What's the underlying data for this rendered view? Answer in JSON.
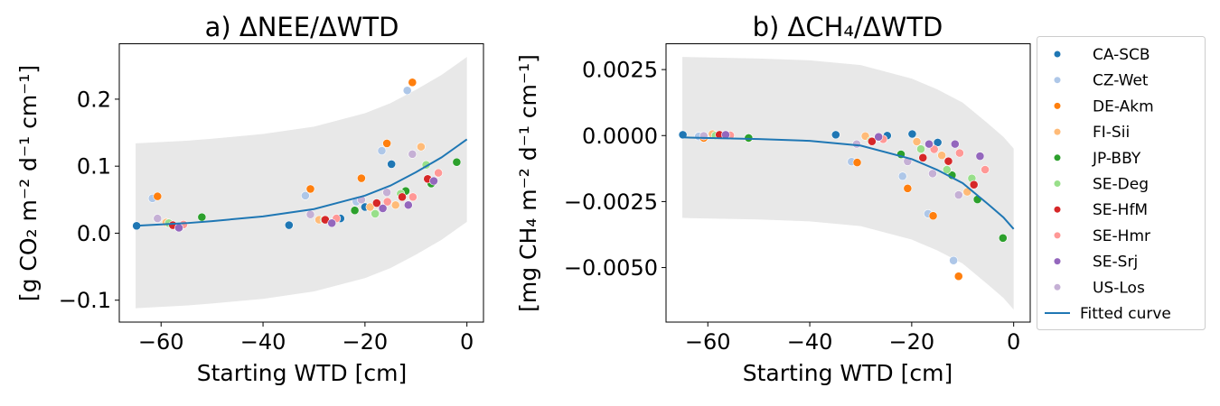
{
  "colors": {
    "CA-SCB": "#1f77b4",
    "CZ-Wet": "#aec7e8",
    "DE-Akm": "#ff7f0e",
    "FI-Sii": "#ffbb78",
    "JP-BBY": "#2ca02c",
    "SE-Deg": "#98df8a",
    "SE-HfM": "#d62728",
    "SE-Hmr": "#ff9896",
    "SE-Srj": "#9467bd",
    "US-Los": "#c5b0d5",
    "curve": "#1f77b4",
    "band": "#e8e8e8"
  },
  "legend": {
    "placement": "outside-right",
    "entries": [
      "CA-SCB",
      "CZ-Wet",
      "DE-Akm",
      "FI-Sii",
      "JP-BBY",
      "SE-Deg",
      "SE-HfM",
      "SE-Hmr",
      "SE-Srj",
      "US-Los",
      "Fitted curve"
    ]
  },
  "chart_data": [
    {
      "type": "scatter",
      "title": "a) ΔNEE/ΔWTD",
      "xlabel": "Starting WTD [cm]",
      "ylabel": "[g CO₂ m⁻² d⁻¹ cm⁻¹]",
      "xlim": [
        -68.2,
        3.25
      ],
      "ylim": [
        -0.1327,
        0.2827
      ],
      "xticks": [
        -60,
        -40,
        -20,
        0
      ],
      "xtick_labels": [
        "−60",
        "−40",
        "−20",
        "0"
      ],
      "yticks": [
        -0.1,
        0.0,
        0.1,
        0.2
      ],
      "ytick_labels": [
        "−0.1",
        "0.0",
        "0.1",
        "0.2"
      ],
      "series": [
        {
          "name": "CA-SCB",
          "x": [
            -64.8,
            -34.9,
            -24.8,
            -20.0,
            -14.8
          ],
          "y": [
            0.011,
            0.012,
            0.022,
            0.039,
            0.103
          ]
        },
        {
          "name": "CZ-Wet",
          "x": [
            -61.7,
            -31.7,
            -21.7,
            -16.7,
            -11.7
          ],
          "y": [
            0.052,
            0.056,
            0.047,
            0.123,
            0.213
          ]
        },
        {
          "name": "DE-Akm",
          "x": [
            -60.7,
            -30.7,
            -20.7,
            -15.7,
            -10.7
          ],
          "y": [
            0.055,
            0.066,
            0.082,
            0.134,
            0.225
          ]
        },
        {
          "name": "FI-Sii",
          "x": [
            -59.0,
            -29.0,
            -19.0,
            -14.0,
            -9.0
          ],
          "y": [
            0.016,
            0.02,
            0.039,
            0.042,
            0.129
          ]
        },
        {
          "name": "JP-BBY",
          "x": [
            -52.0,
            -28.0,
            -22.0,
            -12.0,
            -7.0,
            -2.0
          ],
          "y": [
            0.024,
            0.02,
            0.034,
            0.063,
            0.074,
            0.106
          ]
        },
        {
          "name": "SE-Deg",
          "x": [
            -58.5,
            -28.0,
            -18.0,
            -13.0,
            -8.0
          ],
          "y": [
            0.015,
            0.02,
            0.029,
            0.059,
            0.102
          ]
        },
        {
          "name": "SE-HfM",
          "x": [
            -57.7,
            -27.8,
            -17.7,
            -12.7,
            -7.7
          ],
          "y": [
            0.012,
            0.02,
            0.045,
            0.054,
            0.081
          ]
        },
        {
          "name": "SE-Hmr",
          "x": [
            -55.6,
            -25.6,
            -15.6,
            -10.6,
            -5.6
          ],
          "y": [
            0.013,
            0.022,
            0.047,
            0.054,
            0.09
          ]
        },
        {
          "name": "SE-Srj",
          "x": [
            -56.5,
            -26.5,
            -16.5,
            -11.5,
            -6.5
          ],
          "y": [
            0.008,
            0.015,
            0.037,
            0.042,
            0.078
          ]
        },
        {
          "name": "US-Los",
          "x": [
            -60.7,
            -30.7,
            -20.7,
            -15.7,
            -10.7
          ],
          "y": [
            0.022,
            0.028,
            0.05,
            0.061,
            0.118
          ]
        }
      ],
      "fitted_curve": {
        "x": [
          -65,
          -55,
          -50,
          -40,
          -30,
          -20,
          -15,
          -10,
          -5,
          0
        ],
        "y": [
          0.011,
          0.015,
          0.018,
          0.025,
          0.036,
          0.056,
          0.071,
          0.091,
          0.113,
          0.14
        ]
      },
      "band_halfwidth": 0.123
    },
    {
      "type": "scatter",
      "title": "b) ΔCH₄/ΔWTD",
      "xlabel": "Starting WTD [cm]",
      "ylabel": "[mg CH₄ m⁻² d⁻¹ cm⁻¹]",
      "xlim": [
        -68.2,
        3.25
      ],
      "ylim": [
        -0.007066,
        0.003478
      ],
      "xticks": [
        -60,
        -40,
        -20,
        0
      ],
      "xtick_labels": [
        "−60",
        "−40",
        "−20",
        "0"
      ],
      "yticks": [
        -0.005,
        -0.0025,
        0.0,
        0.0025
      ],
      "ytick_labels": [
        "−0.0050",
        "−0.0025",
        "0.0000",
        "0.0025"
      ],
      "series": [
        {
          "name": "CA-SCB",
          "x": [
            -64.9,
            -34.9,
            -24.8,
            -19.9,
            -14.9
          ],
          "y": [
            3e-05,
            3e-05,
            0.0,
            6e-05,
            -0.00026
          ]
        },
        {
          "name": "CZ-Wet",
          "x": [
            -61.8,
            -31.8,
            -21.8,
            -16.8,
            -11.8
          ],
          "y": [
            -3e-05,
            -0.00099,
            -0.00154,
            -0.00296,
            -0.00473
          ]
        },
        {
          "name": "DE-Akm",
          "x": [
            -60.8,
            -30.7,
            -20.8,
            -15.8,
            -10.8
          ],
          "y": [
            -9e-05,
            -0.00102,
            -0.002,
            -0.00304,
            -0.00533
          ]
        },
        {
          "name": "FI-Sii",
          "x": [
            -59.1,
            -29.1,
            -19.0,
            -14.1,
            -9.1
          ],
          "y": [
            6e-05,
            -2e-05,
            -0.00023,
            -0.00075,
            -0.00213
          ]
        },
        {
          "name": "JP-BBY",
          "x": [
            -52.0,
            -28.0,
            -22.1,
            -12.1,
            -7.1,
            -2.1
          ],
          "y": [
            -9e-05,
            -0.0002,
            -0.00071,
            -0.0015,
            -0.00242,
            -0.00388
          ]
        },
        {
          "name": "SE-Deg",
          "x": [
            -58.5,
            -28.0,
            -18.2,
            -13.1,
            -8.2
          ],
          "y": [
            0.0,
            -0.0002,
            -0.00051,
            -0.00129,
            -0.00162
          ]
        },
        {
          "name": "SE-HfM",
          "x": [
            -57.7,
            -27.8,
            -17.8,
            -12.8,
            -7.8
          ],
          "y": [
            3e-05,
            -0.00022,
            -0.00084,
            -0.00097,
            -0.00186
          ]
        },
        {
          "name": "SE-Hmr",
          "x": [
            -55.6,
            -25.6,
            -15.6,
            -10.6,
            -5.6
          ],
          "y": [
            1e-05,
            -0.00014,
            -0.00052,
            -0.00066,
            -0.00129
          ]
        },
        {
          "name": "SE-Srj",
          "x": [
            -56.5,
            -26.5,
            -16.6,
            -11.5,
            -6.6
          ],
          "y": [
            3e-05,
            -5e-05,
            -0.00032,
            -0.00032,
            -0.00078
          ]
        },
        {
          "name": "US-Los",
          "x": [
            -60.8,
            -30.8,
            -20.8,
            -15.9,
            -10.8
          ],
          "y": [
            -1e-05,
            -0.00032,
            -0.00098,
            -0.00144,
            -0.00225
          ]
        }
      ],
      "fitted_curve": {
        "x": [
          -65,
          -50,
          -40,
          -30,
          -20,
          -15,
          -10,
          -5,
          -2,
          0
        ],
        "y": [
          -7e-05,
          -0.00013,
          -0.0002,
          -0.00038,
          -0.00089,
          -0.0013,
          -0.0018,
          -0.0026,
          -0.0031,
          -0.00354
        ]
      },
      "band_halfwidth": 0.00305
    }
  ]
}
